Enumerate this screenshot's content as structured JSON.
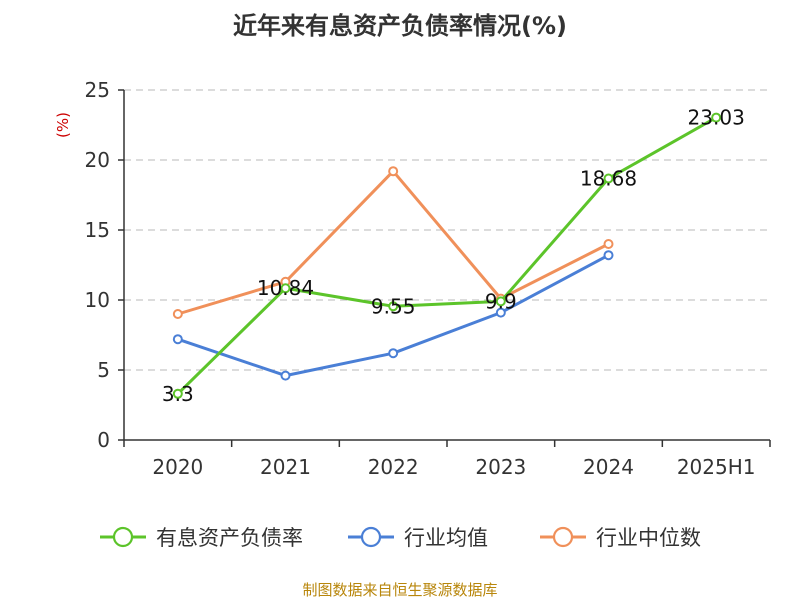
{
  "chart_data": {
    "type": "line",
    "title": "近年来有息资产负债率情况(%)",
    "ylabel": "(%)",
    "categories": [
      "2020",
      "2021",
      "2022",
      "2023",
      "2024",
      "2025H1"
    ],
    "ylim": [
      0,
      25
    ],
    "yticks": [
      0,
      5,
      10,
      15,
      20,
      25
    ],
    "grid": true,
    "legend_position": "bottom",
    "series": [
      {
        "name": "有息资产负债率",
        "color": "#5cc42a",
        "values": [
          3.3,
          10.84,
          9.55,
          9.9,
          18.68,
          23.03
        ],
        "labels": [
          "3.3",
          "10.84",
          "9.55",
          "9.9",
          "18.68",
          "23.03"
        ]
      },
      {
        "name": "行业均值",
        "color": "#4a7fd6",
        "values": [
          7.2,
          4.6,
          6.2,
          9.1,
          13.2,
          null
        ]
      },
      {
        "name": "行业中位数",
        "color": "#f0905a",
        "values": [
          9.0,
          11.3,
          19.2,
          10.1,
          14.0,
          null
        ]
      }
    ],
    "source": "制图数据来自恒生聚源数据库",
    "ylabel_color": "#cc0000",
    "source_color": "#b8860b"
  }
}
